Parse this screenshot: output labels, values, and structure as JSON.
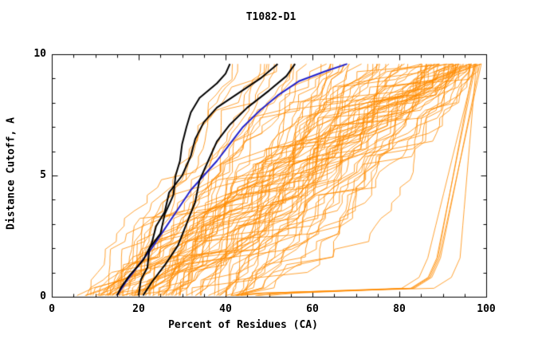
{
  "chart_data": {
    "type": "line",
    "title": "T1082-D1",
    "xlabel": "Percent of Residues (CA)",
    "ylabel": "Distance Cutoff, A",
    "xlim": [
      0,
      100
    ],
    "ylim": [
      0,
      10
    ],
    "x_ticks": [
      0,
      20,
      40,
      60,
      80,
      100
    ],
    "x_minor_step": 5,
    "y_ticks": [
      0,
      5,
      10
    ],
    "y_minor_step": 1,
    "grid": false,
    "legend": "none",
    "ensemble": {
      "description": "bundle of ~90 orange cumulative model curves (percent of CA residues under each distance cutoff)",
      "color": "#ff8c00",
      "width": 0.8,
      "count": 88,
      "late_count": 6,
      "seed": 11,
      "start_x_range": [
        5,
        45
      ],
      "end_x_range": [
        40,
        100
      ],
      "y_top": 9.6
    },
    "series": [
      {
        "name": "highlight-model-blue",
        "color": "#2222cc",
        "width": 2,
        "points": [
          [
            15,
            0.05
          ],
          [
            17,
            0.6
          ],
          [
            20,
            1.3
          ],
          [
            23,
            2.0
          ],
          [
            26,
            2.8
          ],
          [
            29,
            3.6
          ],
          [
            32,
            4.4
          ],
          [
            35,
            5.0
          ],
          [
            38,
            5.6
          ],
          [
            41,
            6.3
          ],
          [
            44,
            7.0
          ],
          [
            48,
            7.7
          ],
          [
            52,
            8.3
          ],
          [
            57,
            8.9
          ],
          [
            63,
            9.3
          ],
          [
            68,
            9.6
          ]
        ]
      },
      {
        "name": "reference-model-black-1",
        "color": "#000000",
        "width": 2,
        "points": [
          [
            20,
            0.05
          ],
          [
            20.5,
            0.7
          ],
          [
            22,
            1.2
          ],
          [
            22.5,
            2.0
          ],
          [
            25,
            2.6
          ],
          [
            26,
            3.4
          ],
          [
            28,
            4.2
          ],
          [
            28.5,
            5.0
          ],
          [
            29.5,
            5.6
          ],
          [
            30,
            6.3
          ],
          [
            31,
            7.0
          ],
          [
            32,
            7.6
          ],
          [
            34,
            8.2
          ],
          [
            38,
            8.8
          ],
          [
            40,
            9.2
          ],
          [
            41,
            9.6
          ]
        ]
      },
      {
        "name": "reference-model-black-2",
        "color": "#000000",
        "width": 2,
        "points": [
          [
            15,
            0.05
          ],
          [
            16,
            0.4
          ],
          [
            18,
            0.9
          ],
          [
            21,
            1.5
          ],
          [
            23,
            2.2
          ],
          [
            24,
            2.9
          ],
          [
            26,
            3.5
          ],
          [
            27,
            4.3
          ],
          [
            30,
            5.0
          ],
          [
            32,
            5.8
          ],
          [
            33,
            6.5
          ],
          [
            35,
            7.2
          ],
          [
            38,
            7.8
          ],
          [
            43,
            8.4
          ],
          [
            48,
            9.0
          ],
          [
            52,
            9.6
          ]
        ]
      },
      {
        "name": "reference-model-black-3",
        "color": "#000000",
        "width": 2,
        "points": [
          [
            21,
            0.05
          ],
          [
            23,
            0.6
          ],
          [
            26,
            1.3
          ],
          [
            29,
            2.1
          ],
          [
            31,
            3.0
          ],
          [
            33,
            3.9
          ],
          [
            34,
            4.8
          ],
          [
            36,
            5.6
          ],
          [
            38,
            6.4
          ],
          [
            41,
            7.1
          ],
          [
            45,
            7.8
          ],
          [
            50,
            8.5
          ],
          [
            54,
            9.1
          ],
          [
            56,
            9.6
          ]
        ]
      }
    ]
  }
}
